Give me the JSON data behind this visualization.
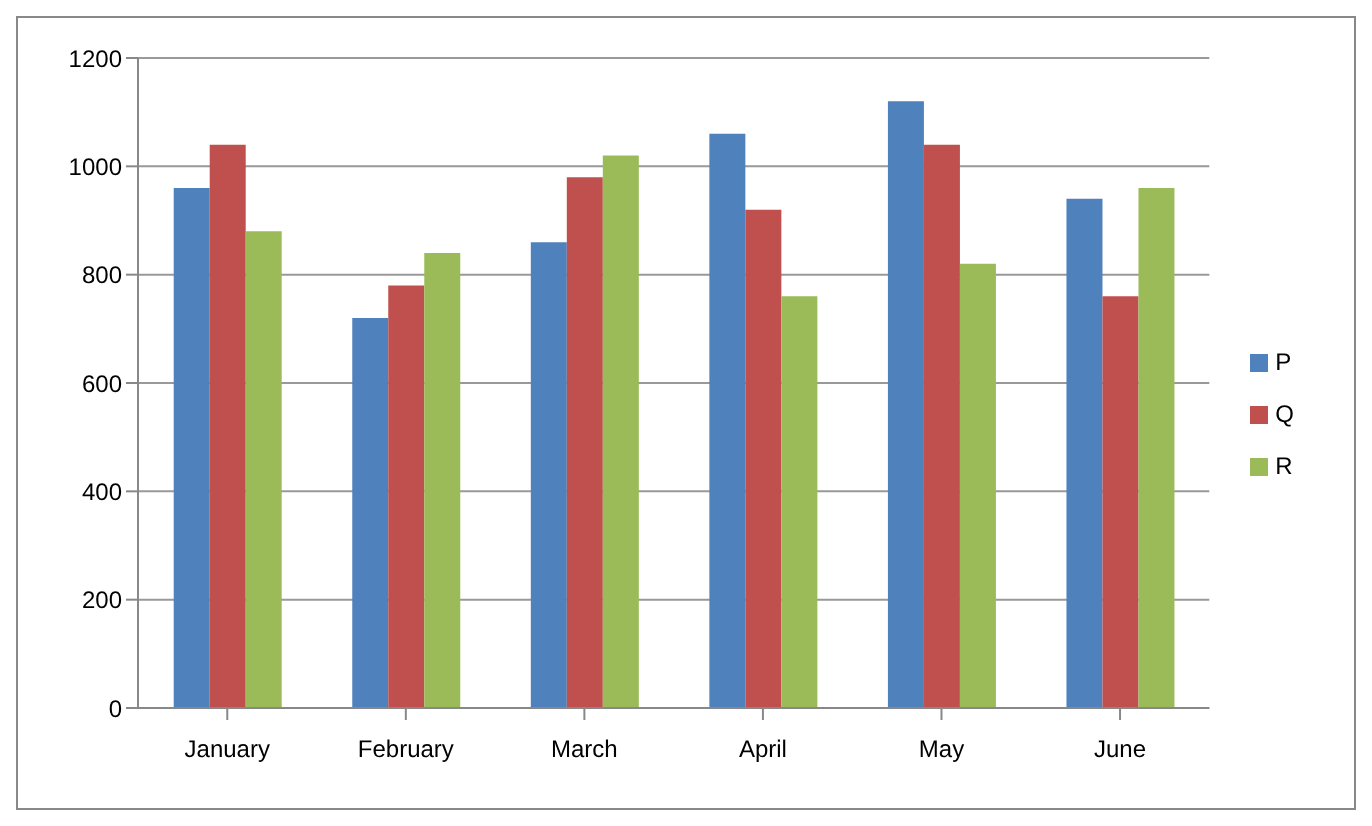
{
  "chart_data": {
    "type": "bar",
    "categories": [
      "January",
      "February",
      "March",
      "April",
      "May",
      "June"
    ],
    "series": [
      {
        "name": "P",
        "color": "#4f81bd",
        "values": [
          960,
          720,
          860,
          1060,
          1120,
          940
        ]
      },
      {
        "name": "Q",
        "color": "#c0504d",
        "values": [
          1040,
          780,
          980,
          920,
          1040,
          760
        ]
      },
      {
        "name": "R",
        "color": "#9bbb59",
        "values": [
          880,
          840,
          1020,
          760,
          820,
          960
        ]
      }
    ],
    "ylim": [
      0,
      1200
    ],
    "yticks": [
      0,
      200,
      400,
      600,
      800,
      1000,
      1200
    ],
    "grid": "y",
    "legend": "right"
  }
}
